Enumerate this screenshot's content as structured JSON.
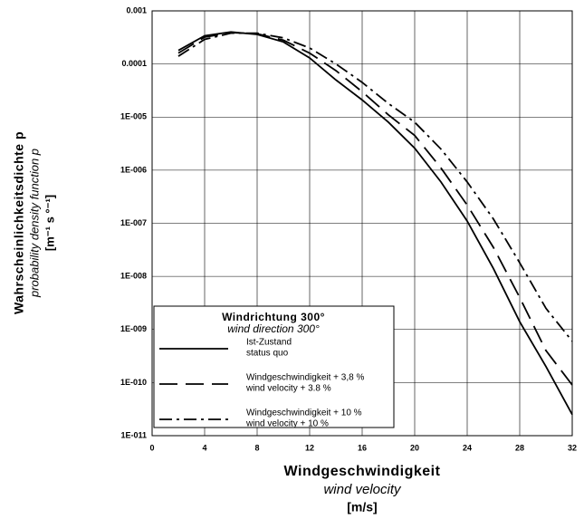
{
  "chart_data": {
    "type": "line",
    "log_y": true,
    "grid": true,
    "x_label": "Windgeschwindigkeit",
    "x_label_en": "wind velocity",
    "x_unit": "[m/s]",
    "y_label": "Wahrscheinlichkeitsdichte p",
    "y_label_en": "probability density function p",
    "y_unit": "[m⁻¹ s °⁻¹]",
    "legend_title": "Windrichtung 300°",
    "legend_subtitle": "wind direction 300°",
    "legend_position": "lower left",
    "x": [
      2,
      4,
      6,
      8,
      10,
      12,
      14,
      16,
      18,
      20,
      22,
      24,
      26,
      28,
      30,
      32
    ],
    "series": [
      {
        "name": "Ist-Zustand",
        "name_en": "status quo",
        "color": "#000000",
        "dash": "solid",
        "values": [
          0.00018,
          0.00034,
          0.0004,
          0.00036,
          0.00026,
          0.00013,
          5e-05,
          2.1e-05,
          8e-06,
          2.6e-06,
          6e-07,
          1.1e-07,
          1.4e-08,
          1.4e-09,
          2e-10,
          2.5e-11
        ]
      },
      {
        "name": "Windgeschwindigkeit + 3,8 %",
        "name_en": "wind velocity + 3.8 %",
        "color": "#000000",
        "dash": "dashed",
        "values": [
          0.00016,
          0.00032,
          0.00039,
          0.00037,
          0.00028,
          0.00016,
          7.5e-05,
          3e-05,
          1.1e-05,
          4.5e-06,
          1.1e-06,
          2.2e-07,
          3.5e-08,
          4e-09,
          4e-10,
          9e-11
        ]
      },
      {
        "name": "Windgeschwindigkeit + 10 %",
        "name_en": "wind velocity + 10 %",
        "color": "#000000",
        "dash": "dashdot",
        "values": [
          0.00014,
          0.00029,
          0.00038,
          0.00038,
          0.00031,
          0.0002,
          0.0001,
          4.5e-05,
          1.8e-05,
          8e-06,
          2.5e-06,
          6e-07,
          1.2e-07,
          1.8e-08,
          2.5e-09,
          6e-10
        ]
      }
    ],
    "xlim": [
      0,
      32
    ],
    "xticks": [
      0,
      4,
      8,
      12,
      16,
      20,
      24,
      28,
      32
    ],
    "ylim": [
      1e-11,
      0.001
    ],
    "yticks": [
      0.001,
      0.0001,
      {
        "value": 1e-05,
        "label": "1E-005"
      },
      {
        "value": 1e-06,
        "label": "1E-006"
      },
      {
        "value": 1e-07,
        "label": "1E-007"
      },
      {
        "value": 1e-08,
        "label": "1E-008"
      },
      {
        "value": 1e-09,
        "label": "1E-009"
      },
      {
        "value": 1e-10,
        "label": "1E-010"
      },
      {
        "value": 1e-11,
        "label": "1E-011"
      }
    ]
  }
}
